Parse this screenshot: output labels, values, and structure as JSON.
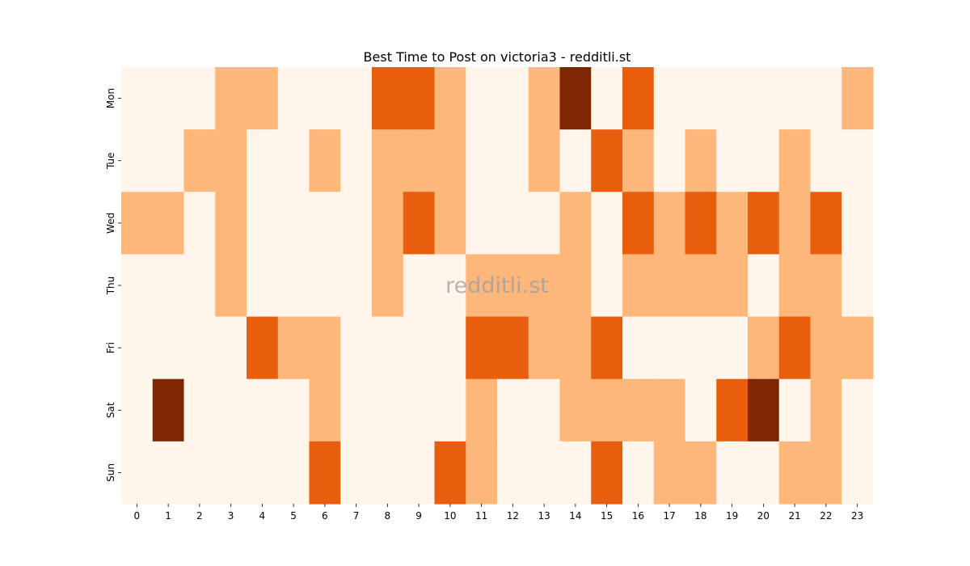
{
  "chart_data": {
    "type": "heatmap",
    "title": "Best Time to Post on victoria3 - redditli.st",
    "watermark": "redditli.st",
    "x_categories": [
      "0",
      "1",
      "2",
      "3",
      "4",
      "5",
      "6",
      "7",
      "8",
      "9",
      "10",
      "11",
      "12",
      "13",
      "14",
      "15",
      "16",
      "17",
      "18",
      "19",
      "20",
      "21",
      "22",
      "23"
    ],
    "y_categories": [
      "Mon",
      "Tue",
      "Wed",
      "Thu",
      "Fri",
      "Sat",
      "Sun"
    ],
    "values": [
      [
        0,
        0,
        0,
        1,
        1,
        0,
        0,
        0,
        2,
        2,
        1,
        0,
        0,
        1,
        3,
        0,
        2,
        0,
        0,
        0,
        0,
        0,
        0,
        1
      ],
      [
        0,
        0,
        1,
        1,
        0,
        0,
        1,
        0,
        1,
        1,
        1,
        0,
        0,
        1,
        0,
        2,
        1,
        0,
        1,
        0,
        0,
        1,
        0,
        0
      ],
      [
        1,
        1,
        0,
        1,
        0,
        0,
        0,
        0,
        1,
        2,
        1,
        0,
        0,
        0,
        1,
        0,
        2,
        1,
        2,
        1,
        2,
        1,
        2,
        0
      ],
      [
        0,
        0,
        0,
        1,
        0,
        0,
        0,
        0,
        1,
        0,
        0,
        1,
        1,
        1,
        1,
        0,
        1,
        1,
        1,
        1,
        0,
        1,
        1,
        0
      ],
      [
        0,
        0,
        0,
        0,
        2,
        1,
        1,
        0,
        0,
        0,
        0,
        2,
        2,
        1,
        1,
        2,
        0,
        0,
        0,
        0,
        1,
        2,
        1,
        1
      ],
      [
        0,
        3,
        0,
        0,
        0,
        0,
        1,
        0,
        0,
        0,
        0,
        1,
        0,
        0,
        1,
        1,
        1,
        1,
        0,
        2,
        3,
        0,
        1,
        0
      ],
      [
        0,
        0,
        0,
        0,
        0,
        0,
        2,
        0,
        0,
        0,
        2,
        1,
        0,
        0,
        0,
        2,
        0,
        1,
        1,
        0,
        0,
        1,
        1,
        0
      ]
    ],
    "color_scale": [
      "#fff5eb",
      "#fdb77a",
      "#e95e0d",
      "#7f2704"
    ],
    "colormap": "Oranges",
    "colorbar": false,
    "grid": false,
    "xlabel": "",
    "ylabel": ""
  }
}
